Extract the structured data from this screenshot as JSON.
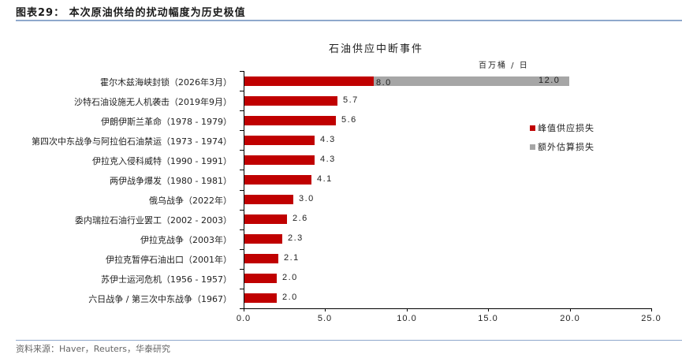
{
  "header": {
    "figure_title": "图表29：  本次原油供给的扰动幅度为历史极值"
  },
  "footer": {
    "source": "资料来源：Haver，Reuters，华泰研究"
  },
  "colors": {
    "peak": "#c00000",
    "extra": "#a6a6a6",
    "rule": "#8fa8cc"
  },
  "chart_data": {
    "type": "bar",
    "orientation": "horizontal",
    "stacked": true,
    "title": "石油供应中断事件",
    "unit": "百万桶 / 日",
    "xlabel": "",
    "ylabel": "",
    "xlim": [
      0,
      25
    ],
    "xticks": [
      "0.0",
      "5.0",
      "10.0",
      "15.0",
      "20.0",
      "25.0"
    ],
    "grid": false,
    "legend_position": "right",
    "categories": [
      "霍尔木兹海峡封锁（2026年3月）",
      "沙特石油设施无人机袭击（2019年9月）",
      "伊朗伊斯兰革命（1978 - 1979）",
      "第四次中东战争与阿拉伯石油禁运（1973 - 1974）",
      "伊拉克入侵科威特（1990 - 1991）",
      "两伊战争爆发（1980 - 1981）",
      "俄乌战争（2022年）",
      "委内瑞拉石油行业罢工（2002 - 2003）",
      "伊拉克战争（2003年）",
      "伊拉克暂停石油出口（2001年）",
      "苏伊士运河危机（1956 - 1957）",
      "六日战争 / 第三次中东战争（1967）"
    ],
    "series": [
      {
        "name": "峰值供应损失",
        "color": "#c00000",
        "values": [
          8.0,
          5.7,
          5.6,
          4.3,
          4.3,
          4.1,
          3.0,
          2.6,
          2.3,
          2.1,
          2.0,
          2.0
        ],
        "labels": [
          "8.0",
          "5.7",
          "5.6",
          "4.3",
          "4.3",
          "4.1",
          "3.0",
          "2.6",
          "2.3",
          "2.1",
          "2.0",
          "2.0"
        ]
      },
      {
        "name": "额外估算损失",
        "color": "#a6a6a6",
        "values": [
          12.0,
          0,
          0,
          0,
          0,
          0,
          0,
          0,
          0,
          0,
          0,
          0
        ],
        "labels": [
          "12.0",
          "",
          "",
          "",
          "",
          "",
          "",
          "",
          "",
          "",
          "",
          ""
        ]
      }
    ]
  }
}
